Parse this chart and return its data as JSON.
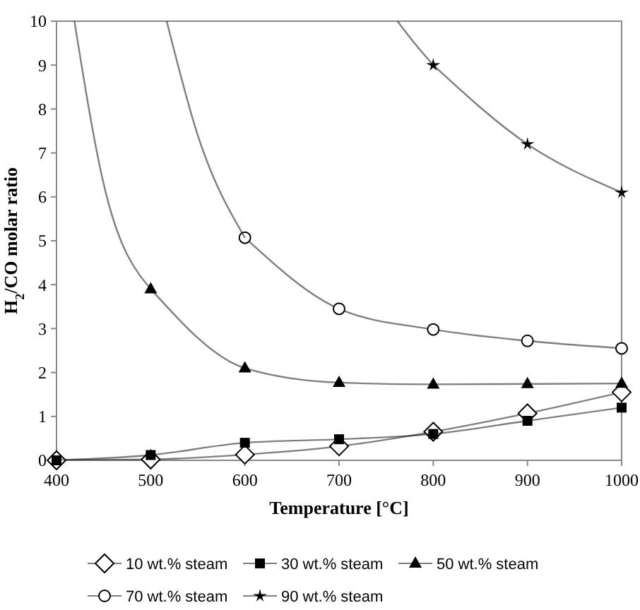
{
  "chart_data": {
    "type": "line",
    "xlabel": "Temperature [°C]",
    "ylabel": "H$_{2}$/CO molar ratio",
    "xlim": [
      400,
      1000
    ],
    "xticks": [
      400,
      500,
      600,
      700,
      800,
      900,
      1000
    ],
    "ylim": [
      0,
      10
    ],
    "yticks": [
      0,
      1,
      2,
      3,
      4,
      5,
      6,
      7,
      8,
      9,
      10
    ],
    "grid": false,
    "legend": "bottom",
    "line_style": "solid",
    "series": [
      {
        "name": "10 wt.% steam",
        "color": "#000000",
        "marker": "diamond",
        "x": [
          400,
          500,
          600,
          700,
          800,
          900,
          1000
        ],
        "values": [
          0,
          0.02,
          0.13,
          0.32,
          0.65,
          1.07,
          1.55
        ]
      },
      {
        "name": "30 wt.% steam",
        "color": "#000000",
        "marker": "square",
        "x": [
          400,
          500,
          600,
          700,
          800,
          900,
          1000
        ],
        "values": [
          0,
          0.12,
          0.4,
          0.48,
          0.6,
          0.9,
          1.2
        ]
      },
      {
        "name": "50 wt.% steam",
        "color": "#000000",
        "marker": "triangle",
        "x": [
          500,
          600,
          700,
          800,
          900,
          1000
        ],
        "values": [
          3.9,
          2.1,
          1.77,
          1.73,
          1.74,
          1.75
        ]
      },
      {
        "name": "70 wt.% steam",
        "color": "#000000",
        "marker": "circle",
        "x": [
          600,
          700,
          800,
          900,
          1000
        ],
        "values": [
          5.07,
          3.45,
          2.98,
          2.72,
          2.55
        ]
      },
      {
        "name": "90 wt.% steam",
        "color": "#000000",
        "marker": "star",
        "x": [
          800,
          900,
          1000
        ],
        "values": [
          9.0,
          7.2,
          6.1
        ]
      },
      {
        "color": "#000000",
        "marker": "none",
        "x": [
          419,
          450,
          500
        ],
        "values": [
          10,
          6.3,
          3.9
        ]
      },
      {
        "color": "#000000",
        "marker": "none",
        "x": [
          517,
          550,
          600
        ],
        "values": [
          10,
          7.4,
          5.07
        ]
      },
      {
        "color": "#000000",
        "marker": "none",
        "x": [
          762,
          780,
          800
        ],
        "values": [
          10,
          9.5,
          9.0
        ]
      }
    ]
  }
}
